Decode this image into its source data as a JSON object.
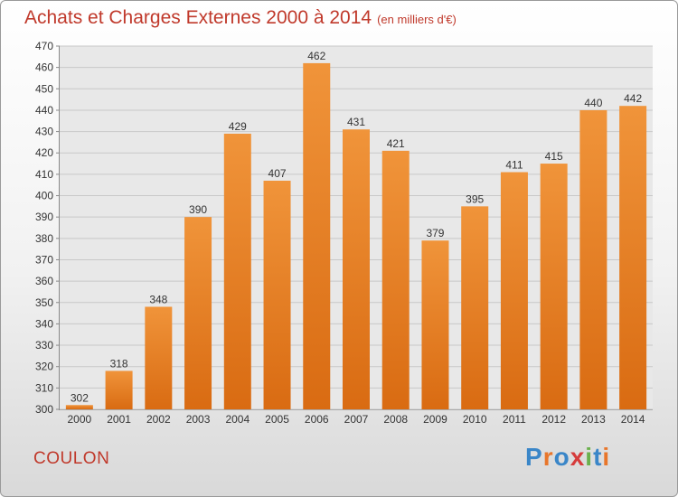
{
  "chart_data": {
    "type": "bar",
    "title": "Achats et Charges Externes 2000 à 2014",
    "subtitle": "(en milliers d'€)",
    "categories": [
      "2000",
      "2001",
      "2002",
      "2003",
      "2004",
      "2005",
      "2006",
      "2007",
      "2008",
      "2009",
      "2010",
      "2011",
      "2012",
      "2013",
      "2014"
    ],
    "values": [
      302,
      318,
      348,
      390,
      429,
      407,
      462,
      431,
      421,
      379,
      395,
      411,
      415,
      440,
      442
    ],
    "ylim": [
      300,
      470
    ],
    "yticks": [
      300,
      310,
      320,
      330,
      340,
      350,
      360,
      370,
      380,
      390,
      400,
      410,
      420,
      430,
      440,
      450,
      460,
      470
    ],
    "grid": true,
    "bar_color": "#f0943a",
    "bar_color_dark": "#d96b12"
  },
  "footer": {
    "town": "COULON",
    "brand": "Proxiti"
  },
  "brand_colors": [
    "#3a86c8",
    "#e8762b",
    "#3a86c8",
    "#d63c3c",
    "#6ab04c",
    "#3a86c8",
    "#e8762b"
  ]
}
